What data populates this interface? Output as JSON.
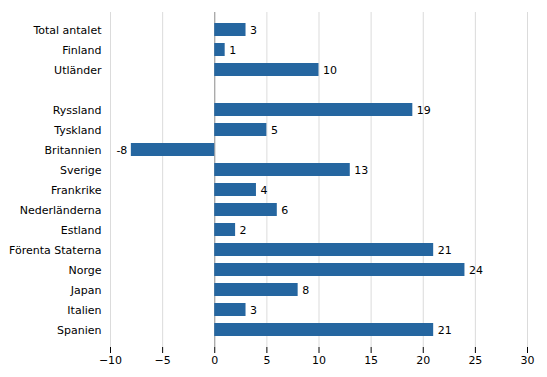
{
  "chart_data": {
    "type": "bar",
    "orientation": "horizontal",
    "categories": [
      "Total antalet",
      "Finland",
      "Utländer",
      null,
      "Ryssland",
      "Tyskland",
      "Britannien",
      "Sverige",
      "Frankrike",
      "Nederländerna",
      "Estland",
      "Förenta Staterna",
      "Norge",
      "Japan",
      "Italien",
      "Spanien"
    ],
    "values": [
      3,
      1,
      10,
      null,
      19,
      5,
      -8,
      13,
      4,
      6,
      2,
      21,
      24,
      8,
      3,
      21
    ],
    "color": "#2566a0",
    "xlim": [
      -10,
      30
    ],
    "xticks": [
      -10,
      -5,
      0,
      5,
      10,
      15,
      20,
      25,
      30
    ],
    "grid": true,
    "data_labels": true
  }
}
